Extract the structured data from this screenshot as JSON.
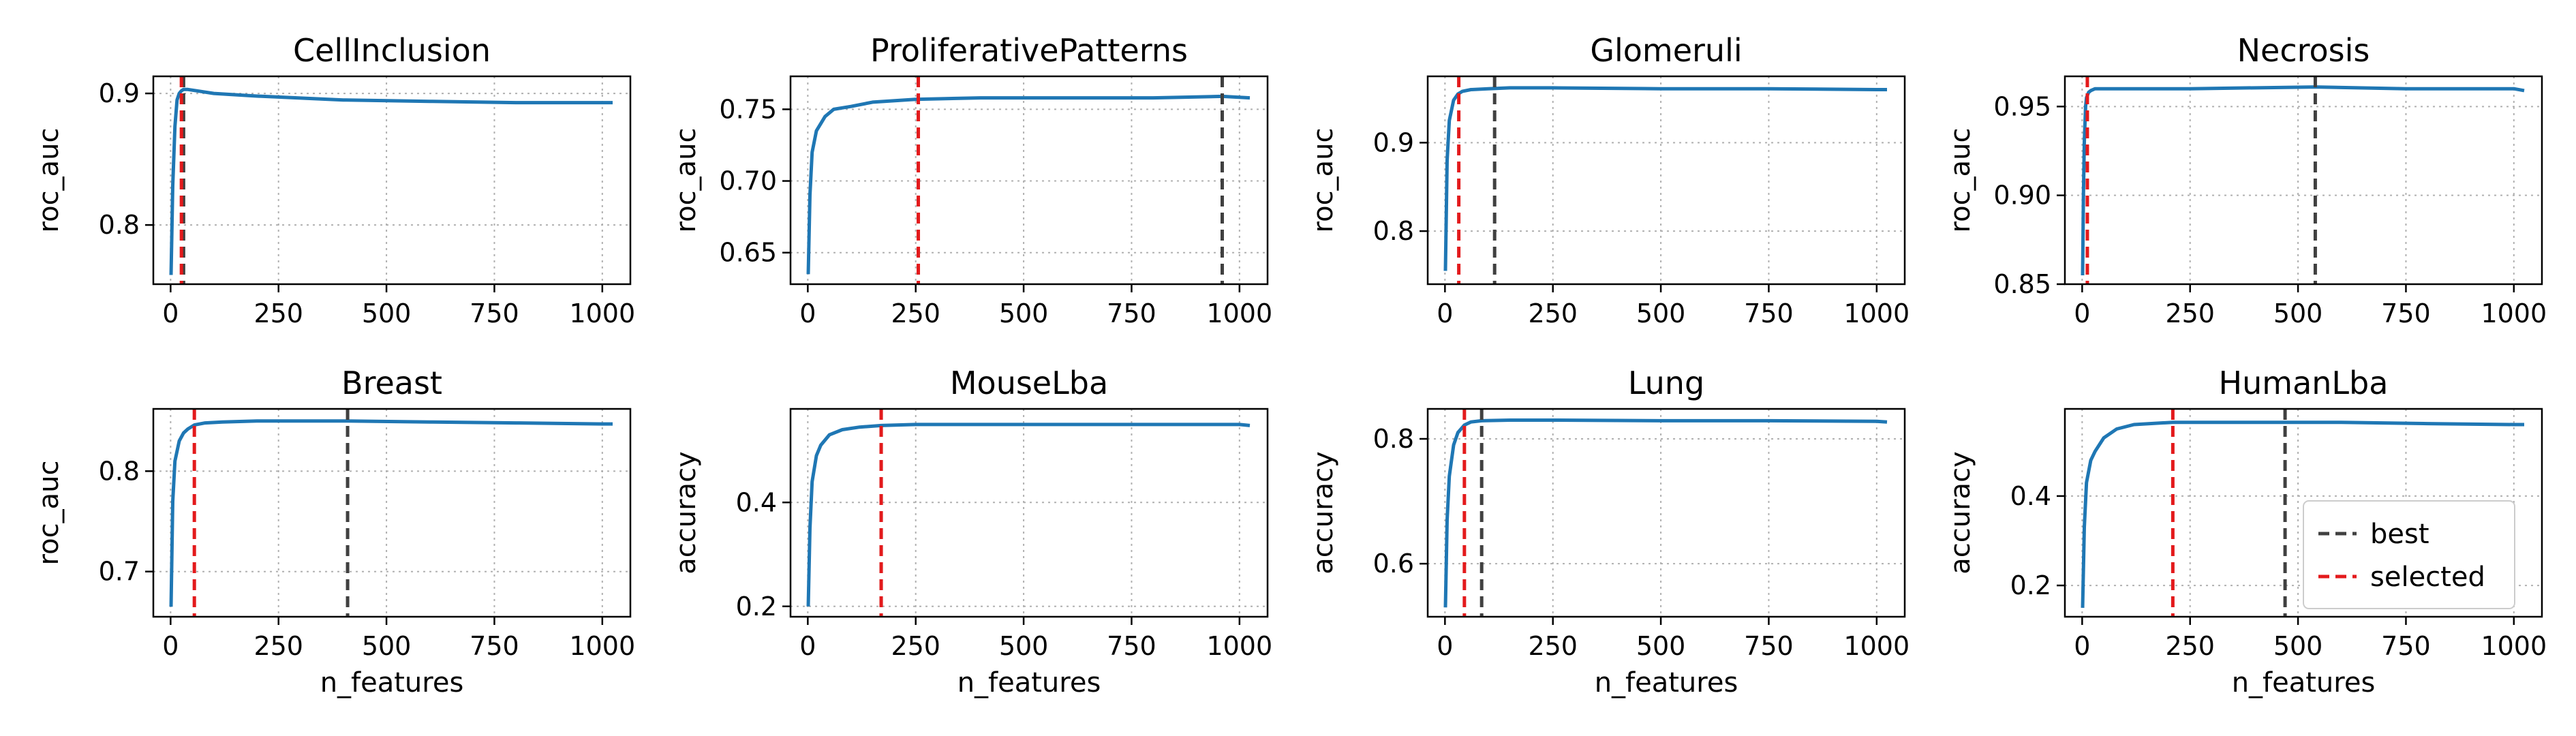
{
  "legend": {
    "best_label": "best",
    "selected_label": "selected",
    "placement": "lower-right (HumanLba panel)"
  },
  "colors": {
    "series": "#1f77b4",
    "best": "#404040",
    "selected": "#e31a1c",
    "grid": "#b0b0b0"
  },
  "chart_data": [
    {
      "type": "line",
      "title": "CellInclusion",
      "xlabel": "",
      "ylabel": "roc_auc",
      "xlim": [
        -40,
        1065
      ],
      "ylim": [
        0.755,
        0.913
      ],
      "xticks": [
        0,
        250,
        500,
        750,
        1000
      ],
      "xtick_labels": [
        "0",
        "250",
        "500",
        "750",
        "1000"
      ],
      "yticks": [
        0.8,
        0.9
      ],
      "ytick_labels": [
        "0.8",
        "0.9"
      ],
      "grid": true,
      "series": [
        {
          "x": [
            1,
            5,
            10,
            15,
            20,
            25,
            30,
            40,
            60,
            100,
            200,
            400,
            600,
            800,
            1000,
            1024
          ],
          "y": [
            0.762,
            0.83,
            0.875,
            0.895,
            0.9,
            0.902,
            0.903,
            0.903,
            0.902,
            0.9,
            0.898,
            0.895,
            0.894,
            0.893,
            0.893,
            0.893
          ]
        }
      ],
      "best_x": 30,
      "selected_x": 25
    },
    {
      "type": "line",
      "title": "ProliferativePatterns",
      "xlabel": "",
      "ylabel": "roc_auc",
      "xlim": [
        -40,
        1065
      ],
      "ylim": [
        0.628,
        0.773
      ],
      "xticks": [
        0,
        250,
        500,
        750,
        1000
      ],
      "xtick_labels": [
        "0",
        "250",
        "500",
        "750",
        "1000"
      ],
      "yticks": [
        0.65,
        0.7,
        0.75
      ],
      "ytick_labels": [
        "0.65",
        "0.70",
        "0.75"
      ],
      "grid": true,
      "series": [
        {
          "x": [
            1,
            5,
            10,
            20,
            40,
            60,
            100,
            150,
            250,
            400,
            600,
            800,
            960,
            1024
          ],
          "y": [
            0.635,
            0.69,
            0.72,
            0.735,
            0.745,
            0.75,
            0.752,
            0.755,
            0.757,
            0.758,
            0.758,
            0.758,
            0.759,
            0.758
          ]
        }
      ],
      "best_x": 960,
      "selected_x": 256
    },
    {
      "type": "line",
      "title": "Glomeruli",
      "xlabel": "",
      "ylabel": "roc_auc",
      "xlim": [
        -40,
        1065
      ],
      "ylim": [
        0.74,
        0.975
      ],
      "xticks": [
        0,
        250,
        500,
        750,
        1000
      ],
      "xtick_labels": [
        "0",
        "250",
        "500",
        "750",
        "1000"
      ],
      "yticks": [
        0.8,
        0.9
      ],
      "ytick_labels": [
        "0.8",
        "0.9"
      ],
      "grid": true,
      "series": [
        {
          "x": [
            1,
            5,
            10,
            20,
            30,
            40,
            60,
            100,
            150,
            250,
            500,
            750,
            1000,
            1024
          ],
          "y": [
            0.755,
            0.88,
            0.925,
            0.948,
            0.955,
            0.958,
            0.96,
            0.961,
            0.962,
            0.962,
            0.961,
            0.961,
            0.96,
            0.96
          ]
        }
      ],
      "best_x": 115,
      "selected_x": 32
    },
    {
      "type": "line",
      "title": "Necrosis",
      "xlabel": "",
      "ylabel": "roc_auc",
      "xlim": [
        -40,
        1065
      ],
      "ylim": [
        0.85,
        0.967
      ],
      "xticks": [
        0,
        250,
        500,
        750,
        1000
      ],
      "xtick_labels": [
        "0",
        "250",
        "500",
        "750",
        "1000"
      ],
      "yticks": [
        0.85,
        0.9,
        0.95
      ],
      "ytick_labels": [
        "0.85",
        "0.90",
        "0.95"
      ],
      "grid": true,
      "series": [
        {
          "x": [
            1,
            3,
            5,
            8,
            10,
            15,
            20,
            30,
            50,
            100,
            250,
            540,
            750,
            1000,
            1024
          ],
          "y": [
            0.855,
            0.9,
            0.93,
            0.95,
            0.955,
            0.958,
            0.959,
            0.96,
            0.96,
            0.96,
            0.96,
            0.961,
            0.96,
            0.96,
            0.959
          ]
        }
      ],
      "best_x": 540,
      "selected_x": 12
    },
    {
      "type": "line",
      "title": "Breast",
      "xlabel": "n_features",
      "ylabel": "roc_auc",
      "xlim": [
        -40,
        1065
      ],
      "ylim": [
        0.655,
        0.862
      ],
      "xticks": [
        0,
        250,
        500,
        750,
        1000
      ],
      "xtick_labels": [
        "0",
        "250",
        "500",
        "750",
        "1000"
      ],
      "yticks": [
        0.7,
        0.8
      ],
      "ytick_labels": [
        "0.7",
        "0.8"
      ],
      "grid": true,
      "series": [
        {
          "x": [
            1,
            5,
            10,
            20,
            30,
            40,
            55,
            80,
            120,
            200,
            410,
            600,
            800,
            1000,
            1024
          ],
          "y": [
            0.665,
            0.77,
            0.81,
            0.83,
            0.838,
            0.842,
            0.846,
            0.848,
            0.849,
            0.85,
            0.85,
            0.849,
            0.848,
            0.847,
            0.847
          ]
        }
      ],
      "best_x": 410,
      "selected_x": 55
    },
    {
      "type": "line",
      "title": "MouseLba",
      "xlabel": "n_features",
      "ylabel": "accuracy",
      "xlim": [
        -40,
        1065
      ],
      "ylim": [
        0.18,
        0.58
      ],
      "xticks": [
        0,
        250,
        500,
        750,
        1000
      ],
      "xtick_labels": [
        "0",
        "250",
        "500",
        "750",
        "1000"
      ],
      "yticks": [
        0.2,
        0.4
      ],
      "ytick_labels": [
        "0.2",
        "0.4"
      ],
      "grid": true,
      "series": [
        {
          "x": [
            1,
            5,
            10,
            20,
            30,
            50,
            80,
            120,
            170,
            250,
            500,
            750,
            1000,
            1024
          ],
          "y": [
            0.2,
            0.35,
            0.44,
            0.49,
            0.51,
            0.53,
            0.54,
            0.545,
            0.548,
            0.55,
            0.55,
            0.55,
            0.55,
            0.548
          ]
        }
      ],
      "best_x": 170,
      "selected_x": 170
    },
    {
      "type": "line",
      "title": "Lung",
      "xlabel": "n_features",
      "ylabel": "accuracy",
      "xlim": [
        -40,
        1065
      ],
      "ylim": [
        0.515,
        0.848
      ],
      "xticks": [
        0,
        250,
        500,
        750,
        1000
      ],
      "xtick_labels": [
        "0",
        "250",
        "500",
        "750",
        "1000"
      ],
      "yticks": [
        0.6,
        0.8
      ],
      "ytick_labels": [
        "0.6",
        "0.8"
      ],
      "grid": true,
      "series": [
        {
          "x": [
            1,
            5,
            10,
            20,
            30,
            45,
            60,
            85,
            150,
            250,
            500,
            750,
            1000,
            1024
          ],
          "y": [
            0.53,
            0.67,
            0.74,
            0.79,
            0.81,
            0.822,
            0.827,
            0.829,
            0.83,
            0.83,
            0.829,
            0.829,
            0.828,
            0.827
          ]
        }
      ],
      "best_x": 85,
      "selected_x": 45
    },
    {
      "type": "line",
      "title": "HumanLba",
      "xlabel": "n_features",
      "ylabel": "accuracy",
      "xlim": [
        -40,
        1065
      ],
      "ylim": [
        0.13,
        0.595
      ],
      "xticks": [
        0,
        250,
        500,
        750,
        1000
      ],
      "xtick_labels": [
        "0",
        "250",
        "500",
        "750",
        "1000"
      ],
      "yticks": [
        0.2,
        0.4
      ],
      "ytick_labels": [
        "0.2",
        "0.4"
      ],
      "grid": true,
      "series": [
        {
          "x": [
            1,
            5,
            10,
            20,
            30,
            50,
            80,
            120,
            210,
            300,
            470,
            600,
            800,
            1000,
            1024
          ],
          "y": [
            0.15,
            0.33,
            0.43,
            0.48,
            0.5,
            0.53,
            0.55,
            0.56,
            0.565,
            0.565,
            0.565,
            0.565,
            0.562,
            0.56,
            0.56
          ]
        }
      ],
      "best_x": 470,
      "selected_x": 210
    }
  ]
}
